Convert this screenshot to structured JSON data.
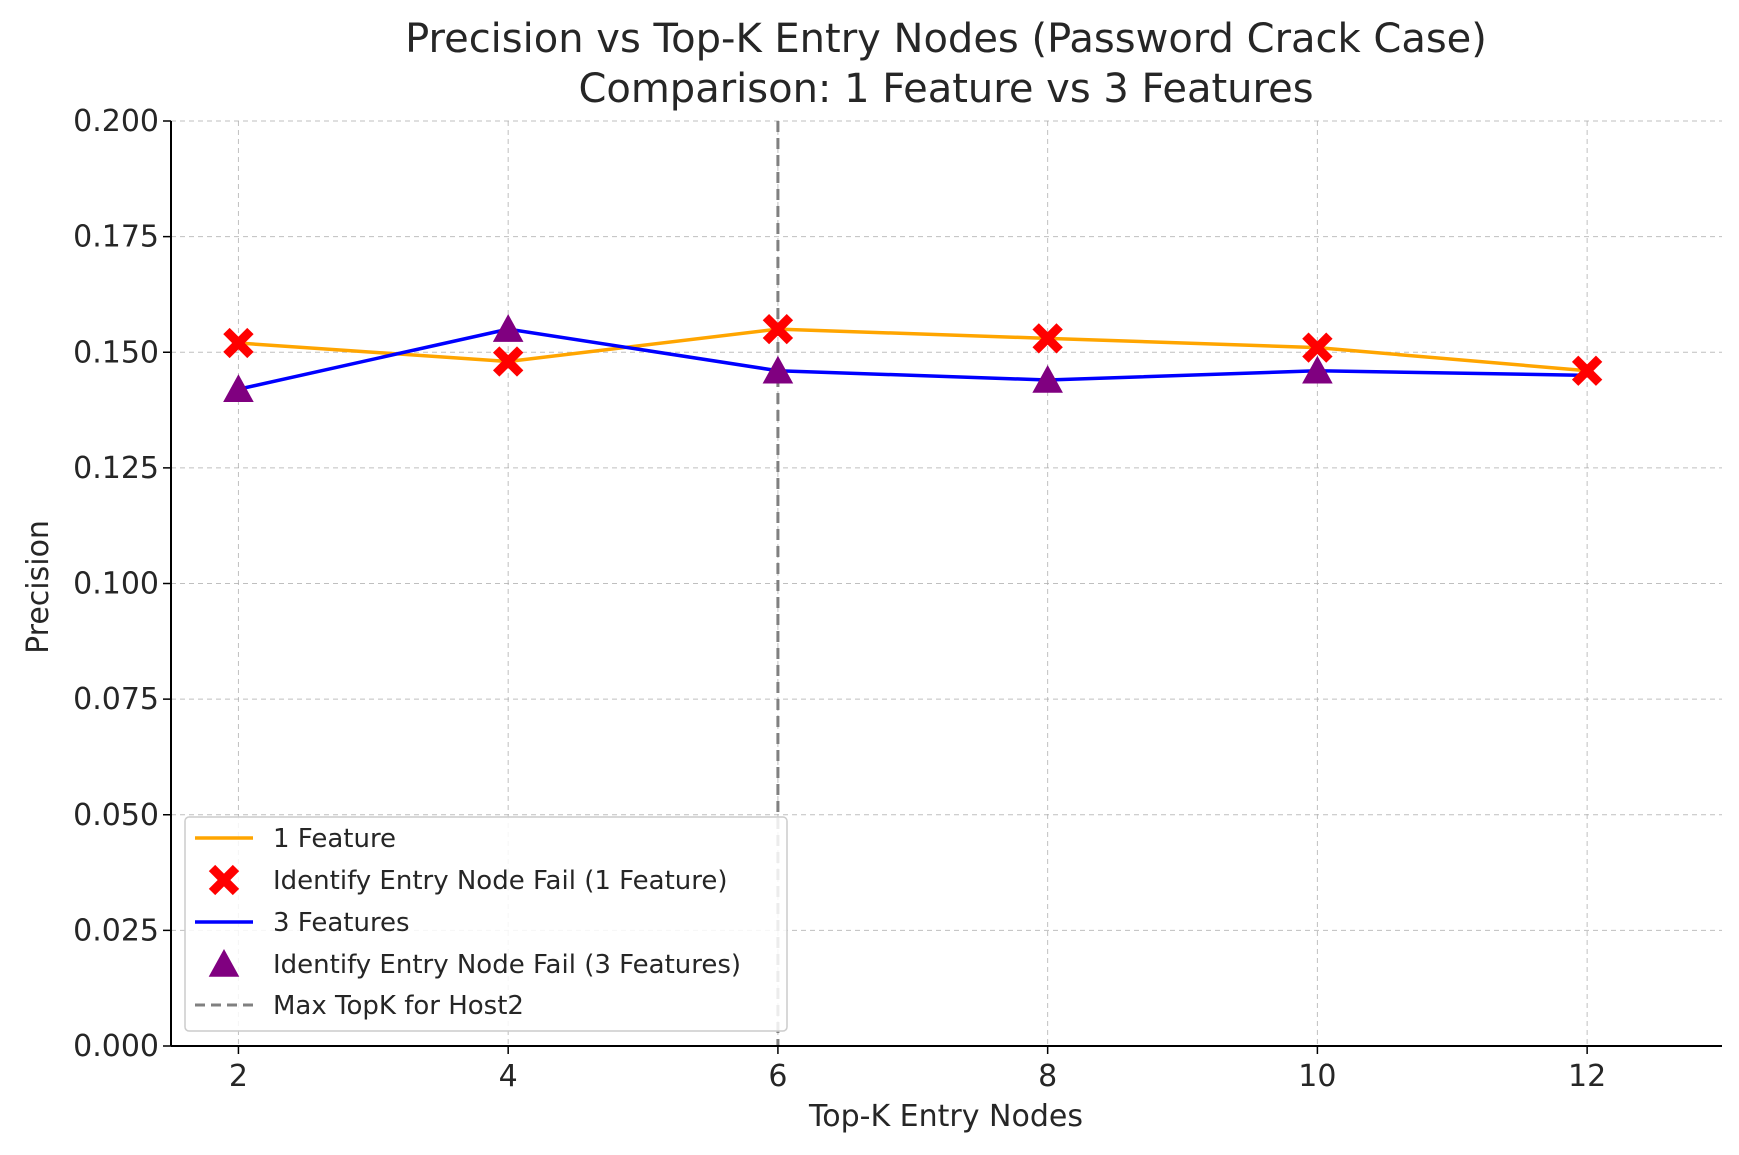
{
  "chart_data": {
    "type": "line",
    "title": "Precision vs Top-K Entry Nodes (Password Crack Case)",
    "subtitle": "Comparison: 1 Feature vs 3 Features",
    "xlabel": "Top-K Entry Nodes",
    "ylabel": "Precision",
    "x": [
      2,
      4,
      6,
      8,
      10,
      12
    ],
    "xlim": [
      1.5,
      13.0
    ],
    "ylim": [
      0.0,
      0.2
    ],
    "xticks": [
      "2",
      "4",
      "6",
      "8",
      "10",
      "12"
    ],
    "yticks": [
      "0.000",
      "0.025",
      "0.050",
      "0.075",
      "0.100",
      "0.125",
      "0.150",
      "0.175",
      "0.200"
    ],
    "grid": true,
    "legend_position": "lower-left",
    "series": [
      {
        "name": "1 Feature",
        "color": "#FFA500",
        "values": [
          0.152,
          0.148,
          0.155,
          0.153,
          0.151,
          0.146
        ],
        "marker_label": "Identify Entry Node Fail (1 Feature)",
        "marker_shape": "x-mark",
        "marker_color": "#FF0000",
        "marker_x": [
          2,
          4,
          6,
          8,
          10,
          12
        ]
      },
      {
        "name": "3 Features",
        "color": "#0000FF",
        "values": [
          0.142,
          0.155,
          0.146,
          0.144,
          0.146,
          0.145
        ],
        "marker_label": "Identify Entry Node Fail (3 Features)",
        "marker_shape": "triangle",
        "marker_color": "#800080",
        "marker_x": [
          2,
          4,
          6,
          8,
          10
        ]
      }
    ],
    "vline": {
      "x": 6,
      "label": "Max TopK for Host2",
      "color": "#808080",
      "style": "dashed"
    }
  }
}
